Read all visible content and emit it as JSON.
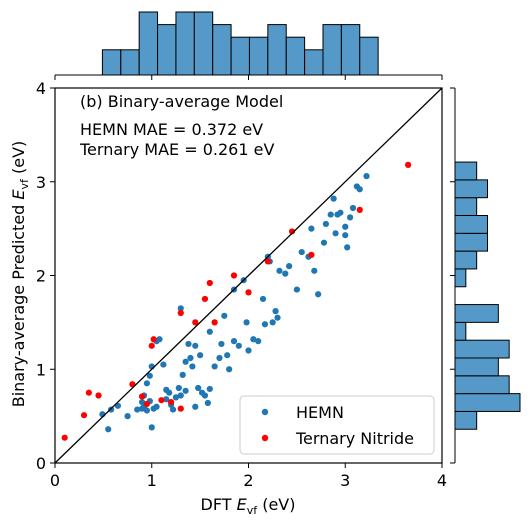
{
  "chart_data": {
    "type": "scatter",
    "title": "(b) Binary-average Model",
    "annotations": [
      "HEMN MAE = 0.372 eV",
      "Ternary MAE = 0.261 eV"
    ],
    "xlabel": "DFT ",
    "xlabel_symbol": "E",
    "xlabel_sub": "vf",
    "xlabel_unit": " (eV)",
    "ylabel": "Binary-average Predicted ",
    "ylabel_symbol": "E",
    "ylabel_sub": "vf",
    "ylabel_unit": " (eV)",
    "xlim": [
      0,
      4
    ],
    "ylim": [
      0,
      4
    ],
    "xticks": [
      "0",
      "1",
      "2",
      "3",
      "4"
    ],
    "yticks": [
      "0",
      "1",
      "2",
      "3",
      "4"
    ],
    "grid": false,
    "legend_position": "lower right",
    "diagonal_line": [
      [
        0,
        0
      ],
      [
        4,
        4
      ]
    ],
    "series": [
      {
        "name": "HEMN",
        "color": "#1f77b4",
        "points": [
          [
            0.49,
            0.52
          ],
          [
            0.58,
            0.57
          ],
          [
            0.65,
            0.61
          ],
          [
            0.55,
            0.36
          ],
          [
            0.75,
            0.5
          ],
          [
            0.85,
            0.57
          ],
          [
            0.9,
            0.65
          ],
          [
            0.92,
            0.6
          ],
          [
            0.95,
            0.56
          ],
          [
            0.98,
            0.66
          ],
          [
            1.0,
            0.38
          ],
          [
            1.02,
            0.58
          ],
          [
            1.05,
            0.6
          ],
          [
            0.92,
            0.72
          ],
          [
            0.95,
            0.85
          ],
          [
            0.98,
            0.93
          ],
          [
            1.0,
            1.03
          ],
          [
            1.05,
            1.3
          ],
          [
            1.08,
            1.32
          ],
          [
            1.12,
            1.05
          ],
          [
            1.15,
            0.78
          ],
          [
            1.18,
            0.75
          ],
          [
            1.2,
            0.62
          ],
          [
            1.22,
            0.57
          ],
          [
            1.25,
            0.7
          ],
          [
            1.28,
            0.8
          ],
          [
            1.3,
            0.72
          ],
          [
            1.32,
            0.94
          ],
          [
            1.35,
            0.77
          ],
          [
            1.38,
            1.27
          ],
          [
            1.4,
            1.12
          ],
          [
            1.42,
            1.03
          ],
          [
            1.45,
            0.6
          ],
          [
            1.48,
            0.8
          ],
          [
            1.5,
            1.15
          ],
          [
            1.52,
            0.75
          ],
          [
            1.55,
            0.72
          ],
          [
            1.58,
            0.64
          ],
          [
            1.6,
            0.79
          ],
          [
            1.65,
            1.03
          ],
          [
            1.7,
            1.12
          ],
          [
            1.72,
            1.27
          ],
          [
            1.75,
            1.57
          ],
          [
            1.78,
            1.15
          ],
          [
            1.8,
            1.0
          ],
          [
            1.85,
            1.85
          ],
          [
            1.9,
            1.25
          ],
          [
            1.95,
            1.95
          ],
          [
            1.98,
            1.5
          ],
          [
            2.0,
            1.2
          ],
          [
            2.05,
            1.32
          ],
          [
            2.15,
            1.75
          ],
          [
            2.2,
            2.2
          ],
          [
            2.22,
            2.15
          ],
          [
            2.25,
            1.5
          ],
          [
            2.28,
            1.62
          ],
          [
            2.32,
            2.05
          ],
          [
            2.38,
            2.02
          ],
          [
            2.42,
            2.1
          ],
          [
            2.5,
            1.85
          ],
          [
            2.55,
            2.25
          ],
          [
            2.62,
            2.2
          ],
          [
            2.68,
            2.05
          ],
          [
            2.72,
            1.8
          ],
          [
            2.78,
            2.35
          ],
          [
            2.8,
            2.55
          ],
          [
            2.85,
            2.65
          ],
          [
            2.88,
            2.82
          ],
          [
            2.9,
            2.45
          ],
          [
            2.92,
            2.65
          ],
          [
            2.95,
            2.67
          ],
          [
            3.0,
            2.52
          ],
          [
            3.02,
            2.3
          ],
          [
            3.05,
            2.62
          ],
          [
            3.08,
            2.72
          ],
          [
            3.12,
            2.95
          ],
          [
            3.15,
            2.92
          ],
          [
            3.22,
            3.06
          ],
          [
            1.35,
            1.08
          ],
          [
            1.15,
            0.68
          ],
          [
            2.3,
            1.55
          ],
          [
            1.45,
            1.25
          ],
          [
            2.1,
            1.3
          ],
          [
            2.17,
            1.48
          ],
          [
            3.0,
            2.43
          ],
          [
            2.65,
            2.5
          ],
          [
            1.6,
            1.4
          ],
          [
            1.85,
            1.3
          ],
          [
            1.3,
            1.65
          ],
          [
            0.9,
            0.58
          ]
        ]
      },
      {
        "name": "Ternary Nitride",
        "color": "#ff0000",
        "points": [
          [
            0.1,
            0.27
          ],
          [
            0.3,
            0.51
          ],
          [
            0.35,
            0.75
          ],
          [
            0.45,
            0.72
          ],
          [
            0.8,
            0.84
          ],
          [
            0.9,
            0.71
          ],
          [
            0.95,
            0.63
          ],
          [
            1.0,
            1.25
          ],
          [
            1.02,
            1.32
          ],
          [
            1.1,
            0.67
          ],
          [
            1.2,
            0.65
          ],
          [
            1.3,
            1.6
          ],
          [
            1.45,
            1.5
          ],
          [
            1.55,
            1.75
          ],
          [
            1.6,
            1.92
          ],
          [
            1.65,
            1.5
          ],
          [
            1.85,
            2.0
          ],
          [
            2.0,
            1.82
          ],
          [
            2.2,
            2.15
          ],
          [
            2.45,
            2.47
          ],
          [
            2.65,
            2.22
          ],
          [
            3.15,
            2.7
          ],
          [
            3.65,
            3.18
          ],
          [
            1.3,
            0.58
          ]
        ]
      }
    ],
    "histogram_top": {
      "bin_edges": [
        0.49,
        0.68,
        0.87,
        1.06,
        1.25,
        1.44,
        1.63,
        1.82,
        2.01,
        2.2,
        2.39,
        2.58,
        2.77,
        2.96,
        3.15,
        3.34
      ],
      "counts": [
        2,
        2,
        5,
        4,
        5,
        5,
        4,
        3,
        3,
        4,
        3,
        2,
        4,
        4,
        3
      ]
    },
    "histogram_right": {
      "bin_edges": [
        0.36,
        0.55,
        0.74,
        0.93,
        1.12,
        1.31,
        1.5,
        1.69,
        1.88,
        2.07,
        2.26,
        2.45,
        2.64,
        2.83,
        3.02,
        3.21
      ],
      "counts": [
        2,
        6,
        5,
        4,
        5,
        1,
        4,
        0,
        1,
        2,
        3,
        3,
        2,
        3,
        2
      ]
    }
  }
}
